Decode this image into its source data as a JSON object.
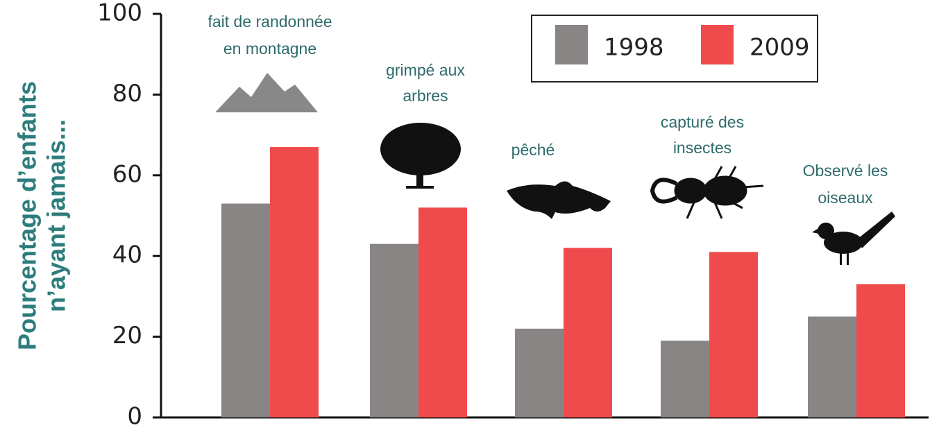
{
  "chart_data": {
    "type": "bar",
    "ylabel": [
      "Pourcentage  d’enfants",
      "n’ayant jamais..."
    ],
    "categories": [
      [
        "fait de randonnée",
        "en montagne"
      ],
      [
        "grimpé aux",
        "arbres"
      ],
      [
        "pêché"
      ],
      [
        "capturé des",
        "insectes"
      ],
      [
        "Observé les",
        "oiseaux"
      ]
    ],
    "series": [
      {
        "name": "1998",
        "color": "#8a8585",
        "values": [
          53,
          43,
          22,
          19,
          25
        ]
      },
      {
        "name": "2009",
        "color": "#f04b4c",
        "values": [
          67,
          52,
          42,
          41,
          33
        ]
      }
    ],
    "ylim": [
      0,
      100
    ],
    "yticks": [
      0,
      20,
      40,
      60,
      80,
      100
    ]
  }
}
